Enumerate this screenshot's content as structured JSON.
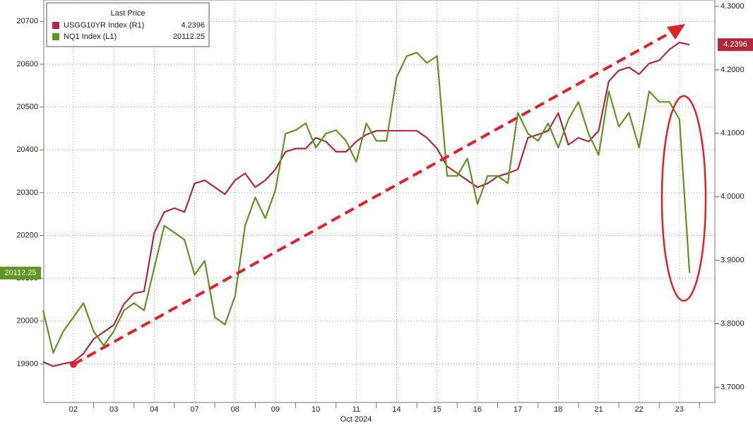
{
  "chart_data": {
    "type": "line",
    "x": [
      null,
      null,
      null,
      "02",
      null,
      null,
      null,
      "03",
      null,
      null,
      null,
      "04",
      null,
      null,
      null,
      "07",
      null,
      null,
      null,
      "08",
      null,
      null,
      null,
      "09",
      null,
      null,
      null,
      "10",
      null,
      null,
      null,
      "11",
      null,
      null,
      null,
      "14",
      null,
      null,
      null,
      "15",
      null,
      null,
      null,
      "16",
      null,
      null,
      null,
      "17",
      null,
      null,
      null,
      "18",
      null,
      null,
      null,
      "21",
      null,
      null,
      null,
      "22",
      null,
      null,
      null,
      "23",
      null
    ],
    "xlabel": "Oct 2024",
    "legend_title": "Last Price",
    "series": [
      {
        "name": "USGG10YR Index  (R1)",
        "color": "#b0283c",
        "axis": "y2",
        "last_value": 4.2396,
        "values": [
          3.74,
          3.733,
          3.737,
          3.74,
          3.753,
          3.776,
          3.787,
          3.798,
          3.831,
          3.848,
          3.851,
          3.943,
          3.976,
          3.982,
          3.976,
          4.021,
          4.026,
          4.015,
          4.004,
          4.026,
          4.037,
          4.015,
          4.026,
          4.043,
          4.071,
          4.076,
          4.076,
          4.093,
          4.087,
          4.071,
          4.071,
          4.087,
          4.098,
          4.104,
          4.104,
          4.104,
          4.104,
          4.104,
          4.093,
          4.076,
          4.048,
          4.037,
          4.026,
          4.015,
          4.021,
          4.032,
          4.037,
          4.043,
          4.093,
          4.098,
          4.104,
          4.132,
          4.082,
          4.093,
          4.087,
          4.104,
          4.182,
          4.199,
          4.204,
          4.193,
          4.21,
          4.215,
          4.232,
          4.243,
          4.2396
        ]
      },
      {
        "name": "NQ1 Index  (L1)",
        "color": "#5e9420",
        "last_value": 20112.25,
        "values": [
          20025,
          19926,
          19976,
          20009,
          20042,
          19976,
          19943,
          19976,
          20025,
          20042,
          20025,
          20124,
          20223,
          20207,
          20190,
          20108,
          20141,
          20009,
          19992,
          20058,
          20223,
          20289,
          20240,
          20306,
          20438,
          20446,
          20462,
          20405,
          20438,
          20446,
          20421,
          20372,
          20462,
          20421,
          20421,
          20570,
          20619,
          20627,
          20603,
          20619,
          20339,
          20339,
          20380,
          20273,
          20339,
          20339,
          20322,
          20487,
          20438,
          20421,
          20462,
          20405,
          20471,
          20512,
          20438,
          20388,
          20537,
          20454,
          20487,
          20405,
          20537,
          20512,
          20512,
          20471,
          20112.25
        ]
      }
    ],
    "ylim": [
      19810,
      20750
    ],
    "yticks": [
      19900,
      20000,
      20100,
      20200,
      20300,
      20400,
      20500,
      20600,
      20700
    ],
    "y2lim": [
      3.676,
      4.31
    ],
    "y2ticks": [
      {
        "value": 3.7,
        "label": "3.7000"
      },
      {
        "value": 3.8,
        "label": "3.8000"
      },
      {
        "value": 3.9,
        "label": "3.9000"
      },
      {
        "value": 4.0,
        "label": "4.0000"
      },
      {
        "value": 4.1,
        "label": "4.1000"
      },
      {
        "value": 4.2,
        "label": "4.2000"
      },
      {
        "value": 4.3,
        "label": "4.3000"
      }
    ],
    "grid": true
  }
}
